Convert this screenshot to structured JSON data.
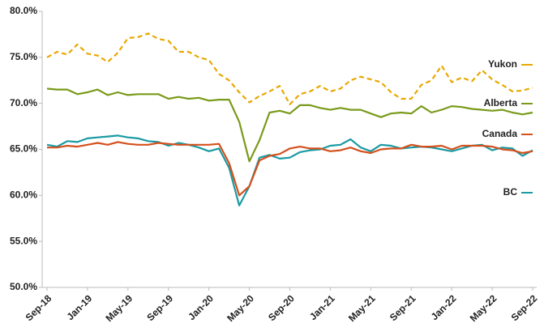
{
  "chart_data": {
    "type": "line",
    "categories": [
      "Sep-18",
      null,
      null,
      null,
      "Jan-19",
      null,
      null,
      null,
      "May-19",
      null,
      null,
      null,
      "Sep-19",
      null,
      null,
      null,
      "Jan-20",
      null,
      null,
      null,
      "May-20",
      null,
      null,
      null,
      "Sep-20",
      null,
      null,
      null,
      "Jan-21",
      null,
      null,
      null,
      "May-21",
      null,
      null,
      null,
      "Sep-21",
      null,
      null,
      null,
      "Jan-22",
      null,
      null,
      null,
      "May-22",
      null,
      null,
      null,
      "Sep-22"
    ],
    "series": [
      {
        "name": "Yukon",
        "color": "#e9a800",
        "dashed": true,
        "values": [
          75.0,
          75.6,
          75.3,
          76.4,
          75.4,
          75.2,
          74.5,
          75.5,
          77.1,
          77.2,
          77.6,
          77.0,
          76.8,
          75.6,
          75.6,
          75.0,
          74.7,
          73.2,
          72.5,
          71.2,
          70.1,
          70.8,
          71.3,
          71.9,
          69.9,
          71.0,
          71.3,
          71.9,
          71.3,
          71.6,
          72.5,
          72.9,
          72.6,
          72.3,
          71.2,
          70.5,
          70.5,
          72.0,
          72.5,
          74.1,
          72.3,
          72.8,
          72.4,
          73.6,
          72.6,
          72.0,
          71.3,
          71.4,
          71.7
        ]
      },
      {
        "name": "Alberta",
        "color": "#7a9a1a",
        "values": [
          71.6,
          71.5,
          71.5,
          71.0,
          71.2,
          71.5,
          70.9,
          71.2,
          70.9,
          71.0,
          71.0,
          71.0,
          70.5,
          70.7,
          70.5,
          70.6,
          70.3,
          70.4,
          70.4,
          68.0,
          63.7,
          66.0,
          69.0,
          69.2,
          68.9,
          69.8,
          69.8,
          69.5,
          69.3,
          69.5,
          69.3,
          69.3,
          68.9,
          68.5,
          68.9,
          69.0,
          68.9,
          69.7,
          69.0,
          69.3,
          69.7,
          69.6,
          69.4,
          69.3,
          69.2,
          69.3,
          69.0,
          68.8,
          69.0
        ]
      },
      {
        "name": "BC",
        "color": "#1a9aa3",
        "values": [
          65.5,
          65.3,
          65.9,
          65.8,
          66.2,
          66.3,
          66.4,
          66.5,
          66.3,
          66.2,
          65.9,
          65.8,
          65.4,
          65.7,
          65.5,
          65.2,
          64.8,
          65.1,
          63.0,
          58.9,
          61.0,
          64.1,
          64.4,
          64.0,
          64.1,
          64.7,
          64.9,
          65.0,
          65.4,
          65.5,
          66.1,
          65.2,
          64.8,
          65.5,
          65.4,
          65.1,
          65.2,
          65.3,
          65.2,
          65.0,
          64.8,
          65.1,
          65.4,
          65.5,
          64.9,
          65.2,
          65.1,
          64.3,
          64.9
        ]
      },
      {
        "name": "Canada",
        "color": "#d4501c",
        "values": [
          65.2,
          65.2,
          65.4,
          65.3,
          65.5,
          65.7,
          65.5,
          65.8,
          65.6,
          65.5,
          65.5,
          65.7,
          65.6,
          65.5,
          65.5,
          65.5,
          65.5,
          65.6,
          63.5,
          60.0,
          61.0,
          63.8,
          64.3,
          64.5,
          65.1,
          65.3,
          65.1,
          65.1,
          64.8,
          64.9,
          65.2,
          64.8,
          64.6,
          65.0,
          65.1,
          65.1,
          65.5,
          65.3,
          65.3,
          65.4,
          65.0,
          65.4,
          65.4,
          65.4,
          65.3,
          65.0,
          64.9,
          64.6,
          64.8
        ]
      }
    ],
    "ylim": [
      50,
      80
    ],
    "yticks": [
      {
        "value": 50,
        "label": "50.0%"
      },
      {
        "value": 55,
        "label": "55.0%"
      },
      {
        "value": 60,
        "label": "60.0%"
      },
      {
        "value": 65,
        "label": "65.0%"
      },
      {
        "value": 70,
        "label": "70.0%"
      },
      {
        "value": 75,
        "label": "75.0%"
      },
      {
        "value": 80,
        "label": "80.0%"
      }
    ]
  }
}
